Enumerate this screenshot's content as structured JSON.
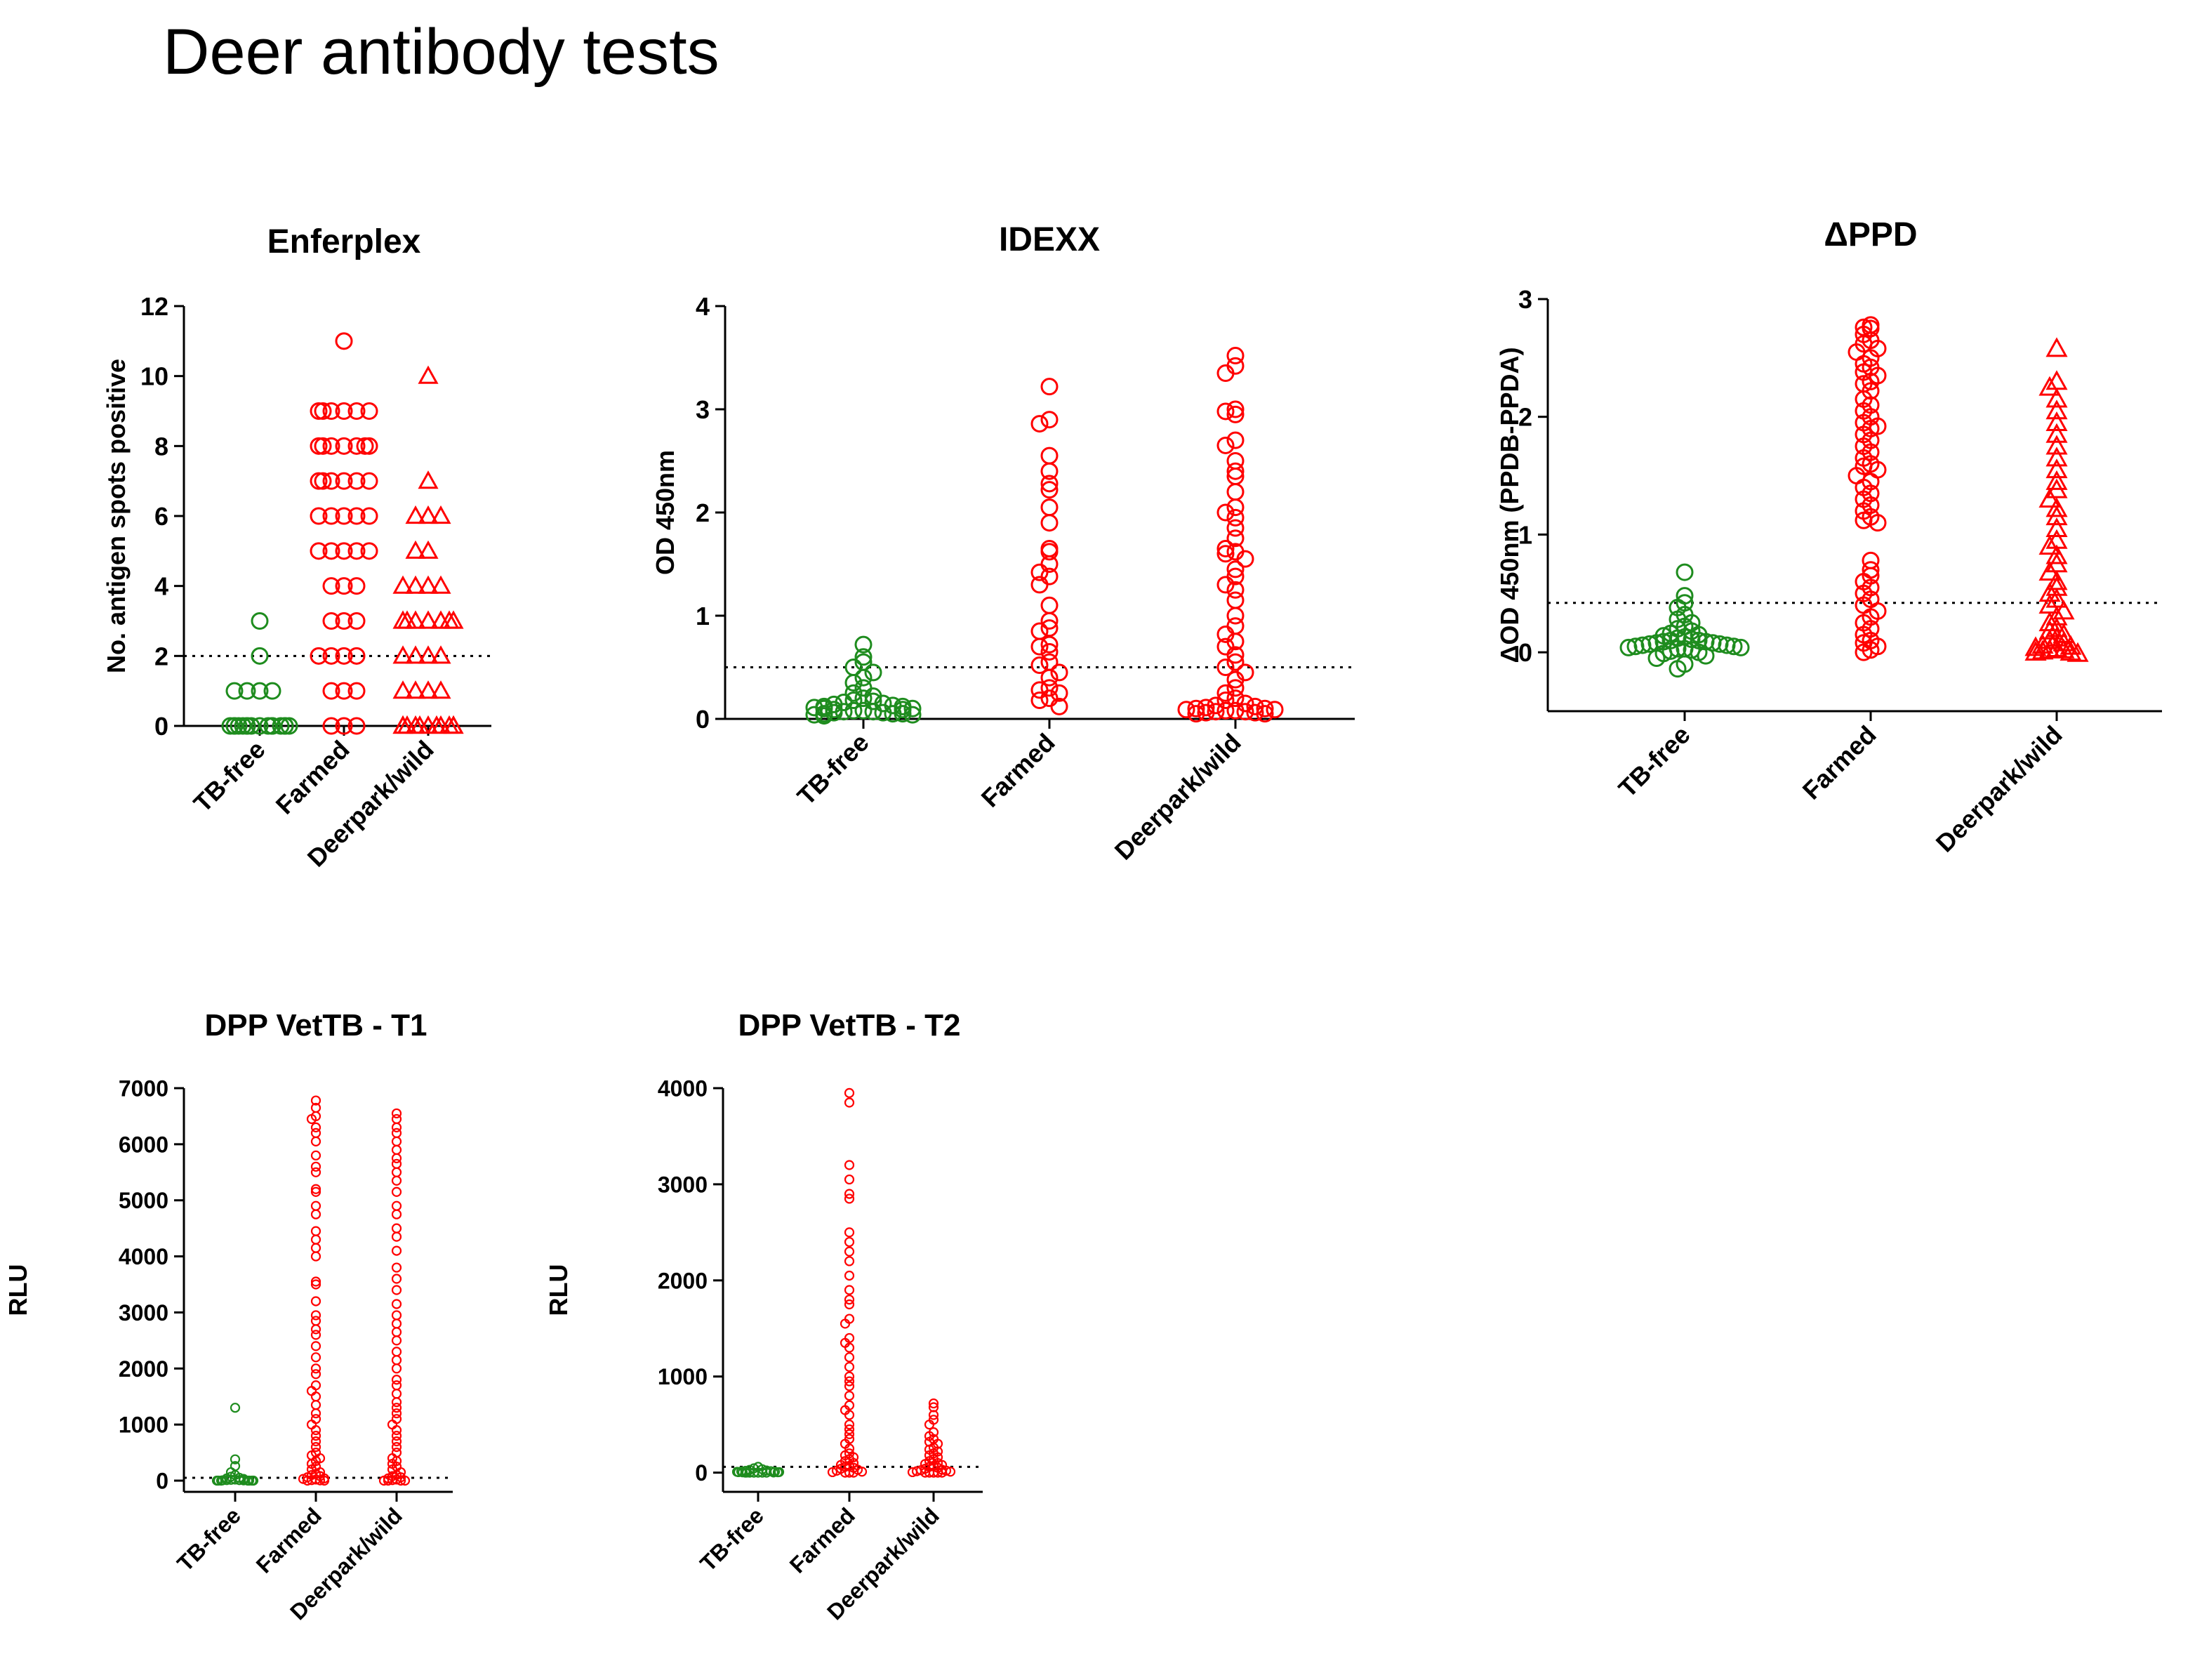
{
  "slide": {
    "title": "Deer antibody tests"
  },
  "colors": {
    "tb_free": "#1e8c1e",
    "farmed": "#ff0000",
    "deerpark_wild": "#ff0000",
    "axis": "#000000"
  },
  "chart_data": [
    {
      "id": "enferplex",
      "type": "scatter",
      "title": "Enferplex",
      "xlabel": "",
      "ylabel": "No. antigen spots positive",
      "ylim": [
        0,
        12
      ],
      "yticks": [
        0,
        2,
        4,
        6,
        8,
        10,
        12
      ],
      "categories": [
        "TB-free",
        "Farmed",
        "Deerpark/wild"
      ],
      "threshold": 2,
      "series": [
        {
          "category": "TB-free",
          "marker": "circle-open",
          "color": "#1e8c1e",
          "values": [
            3,
            2,
            1,
            1,
            1,
            1,
            0,
            0,
            0,
            0,
            0,
            0,
            0,
            0,
            0,
            0,
            0,
            0,
            0,
            0,
            0,
            0
          ]
        },
        {
          "category": "Farmed",
          "marker": "circle-open",
          "color": "#ff0000",
          "values": [
            11,
            9,
            9,
            9,
            9,
            9,
            9,
            8,
            8,
            8,
            8,
            8,
            8,
            8,
            7,
            7,
            7,
            7,
            7,
            7,
            6,
            6,
            6,
            6,
            6,
            5,
            5,
            5,
            5,
            5,
            4,
            4,
            4,
            3,
            3,
            3,
            2,
            2,
            2,
            2,
            1,
            1,
            1,
            0,
            0,
            0
          ]
        },
        {
          "category": "Deerpark/wild",
          "marker": "triangle",
          "color": "#ff0000",
          "values": [
            10,
            7,
            6,
            6,
            6,
            5,
            5,
            4,
            4,
            4,
            4,
            3,
            3,
            3,
            3,
            3,
            3,
            3,
            2,
            2,
            2,
            2,
            1,
            1,
            1,
            1,
            0,
            0,
            0,
            0,
            0,
            0,
            0,
            0,
            0,
            0,
            0
          ]
        }
      ]
    },
    {
      "id": "idexx",
      "type": "scatter",
      "title": "IDEXX",
      "xlabel": "",
      "ylabel": "OD 450nm",
      "ylim": [
        0,
        4
      ],
      "yticks": [
        0,
        1,
        2,
        3,
        4
      ],
      "categories": [
        "TB-free",
        "Farmed",
        "Deerpark/wild"
      ],
      "threshold": 0.5,
      "series": [
        {
          "category": "TB-free",
          "marker": "circle-open",
          "color": "#1e8c1e",
          "values": [
            0.72,
            0.6,
            0.55,
            0.5,
            0.45,
            0.4,
            0.35,
            0.3,
            0.25,
            0.22,
            0.2,
            0.18,
            0.17,
            0.16,
            0.15,
            0.14,
            0.13,
            0.12,
            0.12,
            0.11,
            0.1,
            0.1,
            0.09,
            0.09,
            0.08,
            0.08,
            0.07,
            0.07,
            0.06,
            0.06,
            0.05,
            0.05,
            0.05,
            0.04,
            0.04,
            0.03
          ]
        },
        {
          "category": "Farmed",
          "marker": "circle-open",
          "color": "#ff0000",
          "values": [
            3.22,
            2.9,
            2.86,
            2.55,
            2.4,
            2.28,
            2.22,
            2.05,
            1.9,
            1.65,
            1.62,
            1.5,
            1.42,
            1.38,
            1.3,
            1.1,
            0.95,
            0.88,
            0.85,
            0.72,
            0.7,
            0.65,
            0.55,
            0.52,
            0.45,
            0.4,
            0.3,
            0.28,
            0.25,
            0.2,
            0.18,
            0.12
          ]
        },
        {
          "category": "Deerpark/wild",
          "marker": "circle-open",
          "color": "#ff0000",
          "values": [
            3.52,
            3.42,
            3.35,
            3.0,
            2.98,
            2.95,
            2.7,
            2.65,
            2.5,
            2.4,
            2.35,
            2.2,
            2.05,
            2.0,
            1.95,
            1.85,
            1.75,
            1.65,
            1.62,
            1.6,
            1.55,
            1.45,
            1.38,
            1.3,
            1.25,
            1.15,
            1.0,
            0.9,
            0.82,
            0.75,
            0.7,
            0.62,
            0.55,
            0.5,
            0.45,
            0.38,
            0.3,
            0.25,
            0.2,
            0.18,
            0.15,
            0.13,
            0.12,
            0.11,
            0.1,
            0.1,
            0.09,
            0.09,
            0.08,
            0.08,
            0.07,
            0.07,
            0.06,
            0.06,
            0.05,
            0.05
          ]
        }
      ]
    },
    {
      "id": "dppd",
      "type": "scatter",
      "title": "ΔPPD",
      "xlabel": "",
      "ylabel": "ΔOD 450nm (PPDB-PPDA)",
      "ylim": [
        -0.5,
        3
      ],
      "yticks": [
        0,
        1,
        2,
        3
      ],
      "categories": [
        "TB-free",
        "Farmed",
        "Deerpark/wild"
      ],
      "threshold": 0.42,
      "series": [
        {
          "category": "TB-free",
          "marker": "circle-open",
          "color": "#1e8c1e",
          "values": [
            0.68,
            0.48,
            0.42,
            0.38,
            0.32,
            0.28,
            0.25,
            0.22,
            0.2,
            0.18,
            0.16,
            0.15,
            0.14,
            0.13,
            0.12,
            0.11,
            0.1,
            0.1,
            0.09,
            0.09,
            0.08,
            0.08,
            0.07,
            0.07,
            0.06,
            0.06,
            0.05,
            0.05,
            0.04,
            0.04,
            0.03,
            0.03,
            0.02,
            0.01,
            0.0,
            -0.01,
            -0.03,
            -0.05,
            -0.1,
            -0.14
          ]
        },
        {
          "category": "Farmed",
          "marker": "circle-open",
          "color": "#ff0000",
          "values": [
            2.78,
            2.76,
            2.75,
            2.7,
            2.65,
            2.62,
            2.58,
            2.55,
            2.5,
            2.45,
            2.42,
            2.38,
            2.35,
            2.3,
            2.28,
            2.22,
            2.15,
            2.1,
            2.05,
            2.0,
            1.95,
            1.92,
            1.9,
            1.85,
            1.8,
            1.75,
            1.7,
            1.65,
            1.6,
            1.58,
            1.55,
            1.5,
            1.45,
            1.4,
            1.35,
            1.3,
            1.25,
            1.2,
            1.15,
            1.12,
            1.1,
            0.78,
            0.7,
            0.65,
            0.6,
            0.55,
            0.5,
            0.45,
            0.4,
            0.35,
            0.3,
            0.25,
            0.2,
            0.15,
            0.1,
            0.08,
            0.05,
            0.02,
            0.0
          ]
        },
        {
          "category": "Deerpark/wild",
          "marker": "triangle",
          "color": "#ff0000",
          "values": [
            2.58,
            2.3,
            2.25,
            2.15,
            2.05,
            1.95,
            1.85,
            1.75,
            1.65,
            1.55,
            1.45,
            1.38,
            1.3,
            1.22,
            1.15,
            1.05,
            0.95,
            0.9,
            0.82,
            0.75,
            0.68,
            0.6,
            0.55,
            0.5,
            0.45,
            0.4,
            0.35,
            0.3,
            0.25,
            0.2,
            0.18,
            0.15,
            0.12,
            0.1,
            0.08,
            0.06,
            0.05,
            0.04,
            0.03,
            0.02,
            0.02,
            0.01,
            0.0,
            0.0,
            -0.01
          ]
        }
      ]
    },
    {
      "id": "dpp_t1",
      "type": "scatter",
      "title": "DPP VetTB - T1",
      "xlabel": "",
      "ylabel": "RLU",
      "ylim": [
        -200,
        7000
      ],
      "yticks": [
        0,
        1000,
        2000,
        3000,
        4000,
        5000,
        6000,
        7000
      ],
      "categories": [
        "TB-free",
        "Farmed",
        "Deerpark/wild"
      ],
      "threshold": 50,
      "series": [
        {
          "category": "TB-free",
          "marker": "circle-open",
          "color": "#1e8c1e",
          "values": [
            1300,
            380,
            260,
            150,
            100,
            70,
            50,
            40,
            30,
            20,
            15,
            10,
            10,
            5,
            5,
            0,
            0,
            0,
            0,
            0,
            0,
            0
          ]
        },
        {
          "category": "Farmed",
          "marker": "circle-open",
          "color": "#ff0000",
          "values": [
            6780,
            6650,
            6500,
            6450,
            6300,
            6200,
            6050,
            5800,
            5600,
            5500,
            5200,
            5150,
            4900,
            4750,
            4450,
            4300,
            4150,
            4000,
            3550,
            3500,
            3200,
            2950,
            2850,
            2700,
            2600,
            2400,
            2200,
            2000,
            1900,
            1700,
            1600,
            1500,
            1350,
            1200,
            1100,
            1000,
            900,
            800,
            700,
            600,
            500,
            450,
            400,
            350,
            300,
            250,
            200,
            150,
            120,
            100,
            80,
            60,
            40,
            30,
            20,
            10,
            5,
            0,
            0
          ]
        },
        {
          "category": "Deerpark/wild",
          "marker": "circle-open",
          "color": "#ff0000",
          "values": [
            6550,
            6450,
            6300,
            6200,
            6050,
            5900,
            5750,
            5650,
            5500,
            5350,
            5150,
            4900,
            4750,
            4500,
            4350,
            4100,
            3800,
            3600,
            3400,
            3150,
            2950,
            2800,
            2650,
            2500,
            2300,
            2150,
            2000,
            1800,
            1700,
            1550,
            1400,
            1300,
            1200,
            1100,
            1000,
            900,
            800,
            700,
            600,
            500,
            400,
            350,
            300,
            250,
            200,
            150,
            100,
            80,
            60,
            40,
            20,
            10,
            0,
            0,
            0,
            0
          ]
        }
      ]
    },
    {
      "id": "dpp_t2",
      "type": "scatter",
      "title": "DPP VetTB - T2",
      "xlabel": "",
      "ylabel": "RLU",
      "ylim": [
        -200,
        4000
      ],
      "yticks": [
        0,
        1000,
        2000,
        3000,
        4000
      ],
      "categories": [
        "TB-free",
        "Farmed",
        "Deerpark/wild"
      ],
      "threshold": 60,
      "series": [
        {
          "category": "TB-free",
          "marker": "circle-open",
          "color": "#1e8c1e",
          "values": [
            60,
            45,
            35,
            28,
            22,
            18,
            15,
            12,
            10,
            8,
            6,
            5,
            4,
            3,
            2,
            1,
            0,
            0,
            0,
            0,
            0,
            0
          ]
        },
        {
          "category": "Farmed",
          "marker": "circle-open",
          "color": "#ff0000",
          "values": [
            3950,
            3850,
            3200,
            3050,
            2900,
            2850,
            2500,
            2400,
            2300,
            2200,
            2050,
            1900,
            1800,
            1750,
            1600,
            1550,
            1400,
            1350,
            1300,
            1200,
            1100,
            1000,
            950,
            900,
            800,
            700,
            650,
            600,
            500,
            450,
            400,
            350,
            300,
            250,
            200,
            180,
            160,
            140,
            120,
            100,
            80,
            70,
            60,
            50,
            40,
            30,
            20,
            10,
            5,
            0,
            0,
            0
          ]
        },
        {
          "category": "Deerpark/wild",
          "marker": "circle-open",
          "color": "#ff0000",
          "values": [
            720,
            680,
            600,
            550,
            500,
            420,
            380,
            350,
            320,
            300,
            260,
            240,
            220,
            200,
            180,
            160,
            140,
            120,
            100,
            90,
            80,
            70,
            60,
            50,
            40,
            30,
            25,
            20,
            15,
            10,
            5,
            0,
            0,
            0,
            0,
            0
          ]
        }
      ]
    }
  ]
}
